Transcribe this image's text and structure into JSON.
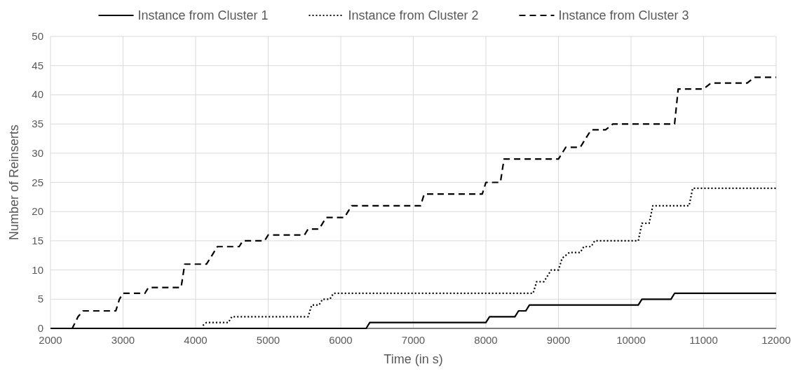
{
  "chart_data": {
    "type": "line",
    "xlabel": "Time (in s)",
    "ylabel": "Number of Reinserts",
    "xlim": [
      2000,
      12000
    ],
    "xticks": [
      2000,
      3000,
      4000,
      5000,
      6000,
      7000,
      8000,
      9000,
      10000,
      11000,
      12000
    ],
    "ylim": [
      0,
      50
    ],
    "yticks": [
      0,
      5,
      10,
      15,
      20,
      25,
      30,
      35,
      40,
      45,
      50
    ],
    "grid": true,
    "legend": "top",
    "marker": "none",
    "series": [
      {
        "name": "Instance from Cluster 1",
        "color": "#000000",
        "line_style": "solid",
        "x": [
          2000,
          6350,
          6400,
          8000,
          8050,
          8400,
          8450,
          8550,
          8600,
          10100,
          10150,
          10550,
          10600,
          12000
        ],
        "values": [
          0,
          0,
          1,
          1,
          2,
          2,
          3,
          3,
          4,
          4,
          5,
          5,
          6,
          6
        ]
      },
      {
        "name": "Instance from Cluster 2",
        "color": "#000000",
        "line_style": "dotted",
        "x": [
          4100,
          4150,
          4450,
          4500,
          5550,
          5600,
          5700,
          5750,
          5850,
          5900,
          8650,
          8700,
          8800,
          8900,
          9000,
          9050,
          9150,
          9300,
          9350,
          9450,
          9500,
          10100,
          10150,
          10250,
          10300,
          10800,
          10850,
          12000
        ],
        "values": [
          0.5,
          1,
          1,
          2,
          2,
          4,
          4,
          5,
          5,
          6,
          6,
          8,
          8,
          10,
          10,
          12,
          13,
          13,
          14,
          14,
          15,
          15,
          18,
          18,
          21,
          21,
          24,
          24
        ]
      },
      {
        "name": "Instance from Cluster 3",
        "color": "#000000",
        "line_style": "dashed",
        "x": [
          2000,
          2300,
          2380,
          2450,
          2900,
          2950,
          3000,
          3300,
          3350,
          3800,
          3850,
          4150,
          4250,
          4300,
          4600,
          4650,
          4950,
          5000,
          5500,
          5550,
          5700,
          5800,
          6050,
          6150,
          7100,
          7150,
          7950,
          8000,
          8200,
          8250,
          9000,
          9100,
          9300,
          9450,
          9650,
          9750,
          10600,
          10650,
          11000,
          11100,
          11600,
          11700,
          12000
        ],
        "values": [
          0,
          0,
          2,
          3,
          3,
          5,
          6,
          6,
          7,
          7,
          11,
          11,
          13,
          14,
          14,
          15,
          15,
          16,
          16,
          17,
          17,
          19,
          19,
          21,
          21,
          23,
          23,
          25,
          25,
          29,
          29,
          31,
          31,
          34,
          34,
          35,
          35,
          41,
          41,
          42,
          42,
          43,
          43
        ]
      }
    ]
  }
}
